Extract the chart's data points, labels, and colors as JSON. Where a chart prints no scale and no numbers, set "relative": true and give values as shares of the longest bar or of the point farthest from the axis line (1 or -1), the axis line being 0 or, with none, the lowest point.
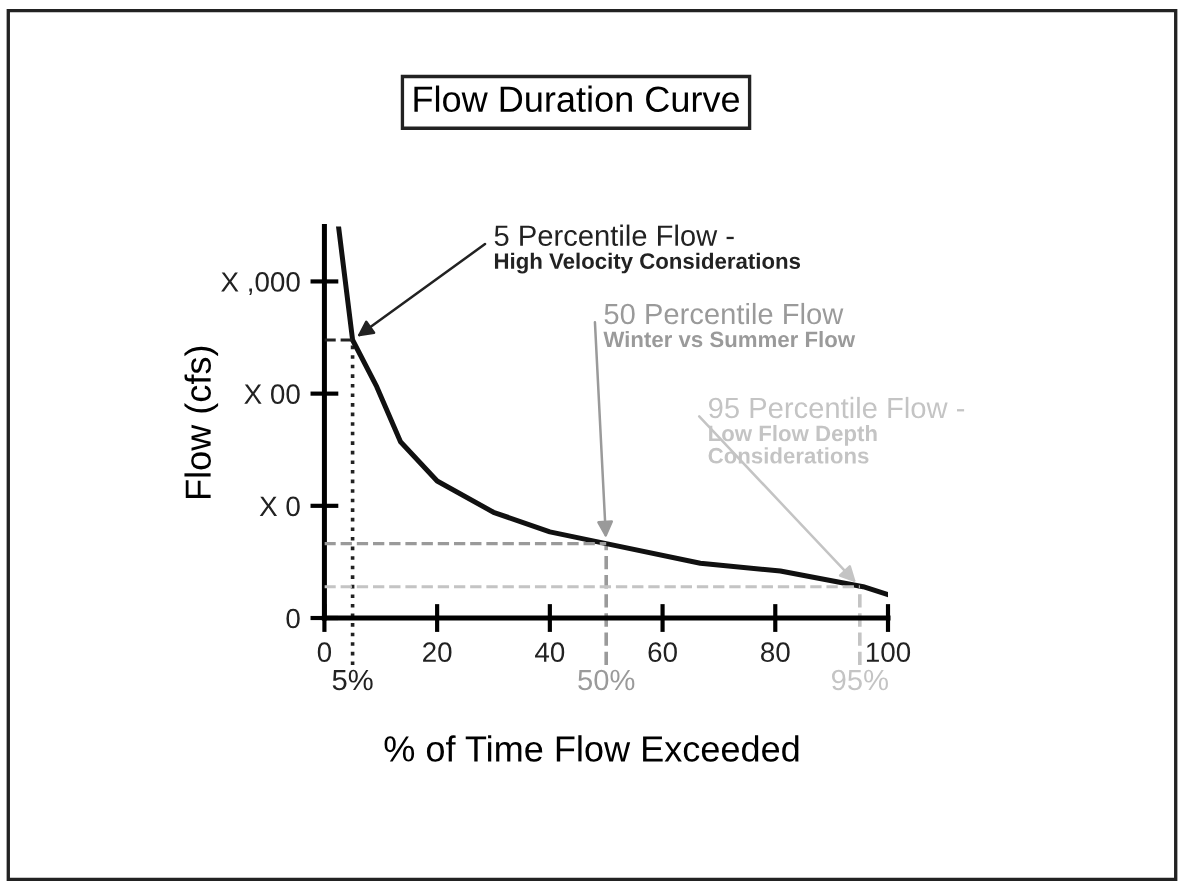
{
  "chart_data": {
    "type": "line",
    "title": "Flow Duration Curve",
    "xlabel": "% of Time Flow Exceeded",
    "ylabel": "Flow (cfs)",
    "relative": true,
    "x": [
      2.5,
      5,
      9.3,
      13.5,
      20,
      30,
      40,
      50,
      66.7,
      80.9,
      95.6,
      100
    ],
    "series": [
      {
        "color": "#111111",
        "values": [
          1,
          0.71,
          0.59,
          0.45,
          0.35,
          0.27,
          0.22,
          0.19,
          0.14,
          0.12,
          0.08,
          0.06
        ]
      },
      {
        "color": "#222222",
        "line_style": "dashed",
        "x": [
          0,
          5
        ],
        "values": [
          0.71,
          0.71
        ]
      },
      {
        "color": "#9a9a9a",
        "line_style": "dashed",
        "x": [
          0,
          50
        ],
        "values": [
          0.19,
          0.19
        ]
      },
      {
        "color": "#c4c4c4",
        "line_style": "dashed",
        "x": [
          0,
          95
        ],
        "values": [
          0.08,
          0.08
        ]
      }
    ],
    "xlim": [
      0,
      100
    ],
    "xticks": [
      0,
      20,
      40,
      60,
      80,
      100
    ],
    "ref_lines": [
      {
        "axis": "x",
        "value": 5,
        "label": "5%",
        "color": "#222222",
        "line_style": "dotted"
      },
      {
        "axis": "x",
        "value": 50,
        "label": "50%",
        "color": "#9a9a9a",
        "line_style": "dashed"
      },
      {
        "axis": "x",
        "value": 95,
        "label": "95%",
        "color": "#c4c4c4",
        "line_style": "dashed"
      }
    ],
    "annotations": [
      {
        "text": "5 Percentile Flow -\nHigh Velocity Considerations",
        "x": 5,
        "y": 0.71
      },
      {
        "text": "50 Percentile Flow\nWinter vs Summer Flow",
        "x": 50,
        "y": 0.19
      },
      {
        "text": "95 Percentile Flow -\nLow Flow Depth\nConsiderations",
        "x": 95,
        "y": 0.08
      },
      "0",
      "X 0",
      "X 00",
      "X ,000"
    ],
    "grid": false,
    "marker": "none",
    "line_style": "solid"
  }
}
